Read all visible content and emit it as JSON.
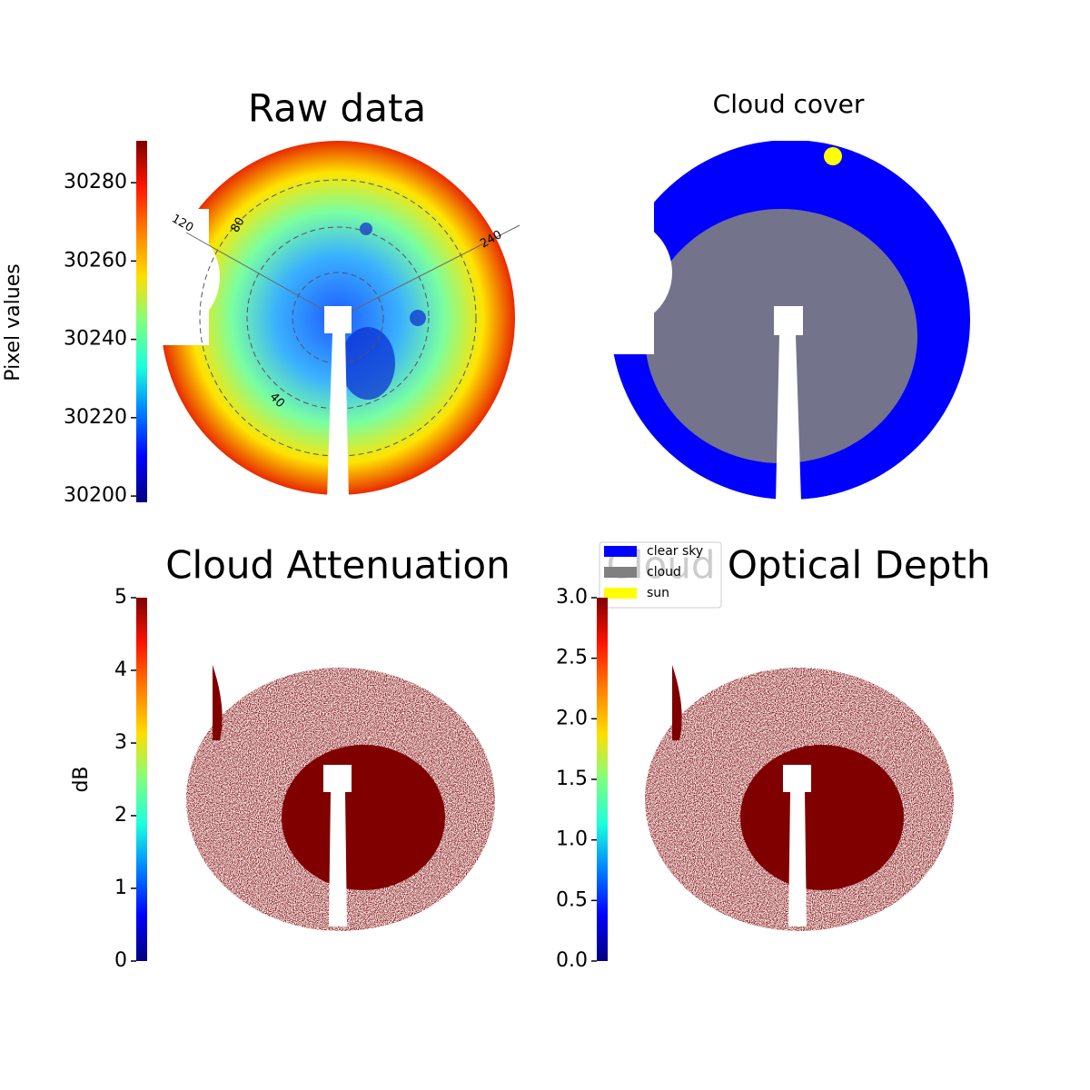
{
  "chart_data": [
    {
      "type": "image",
      "title": "Raw data",
      "colorbar_label": "Pixel values",
      "colormap": "jet",
      "ylim": [
        30198.4,
        30290.7
      ],
      "yticks": [
        30200,
        30220,
        30240,
        30260,
        30280
      ],
      "polar_labels": [
        "120",
        "80",
        "40",
        "240"
      ]
    },
    {
      "type": "image",
      "title": "Cloud cover",
      "series": [
        {
          "name": "clear sky",
          "color": "#0000ff"
        },
        {
          "name": "cloud",
          "color": "#808080"
        },
        {
          "name": "sun",
          "color": "#ffff00"
        }
      ]
    },
    {
      "type": "image",
      "title": "Cloud Attenuation",
      "colorbar_label": "dB",
      "colormap": "jet",
      "ylim": [
        0,
        5
      ],
      "yticks": [
        0,
        1,
        2,
        3,
        4,
        5
      ]
    },
    {
      "type": "image",
      "title": "Cloud Optical Depth",
      "colormap": "jet",
      "ylim": [
        0,
        3
      ],
      "yticks": [
        {
          "value": 0,
          "label": "0.0"
        },
        0.5,
        {
          "value": 1,
          "label": "1.0"
        },
        1.5,
        {
          "value": 2,
          "label": "2.0"
        },
        2.5,
        {
          "value": 3,
          "label": "3.0"
        }
      ]
    }
  ]
}
